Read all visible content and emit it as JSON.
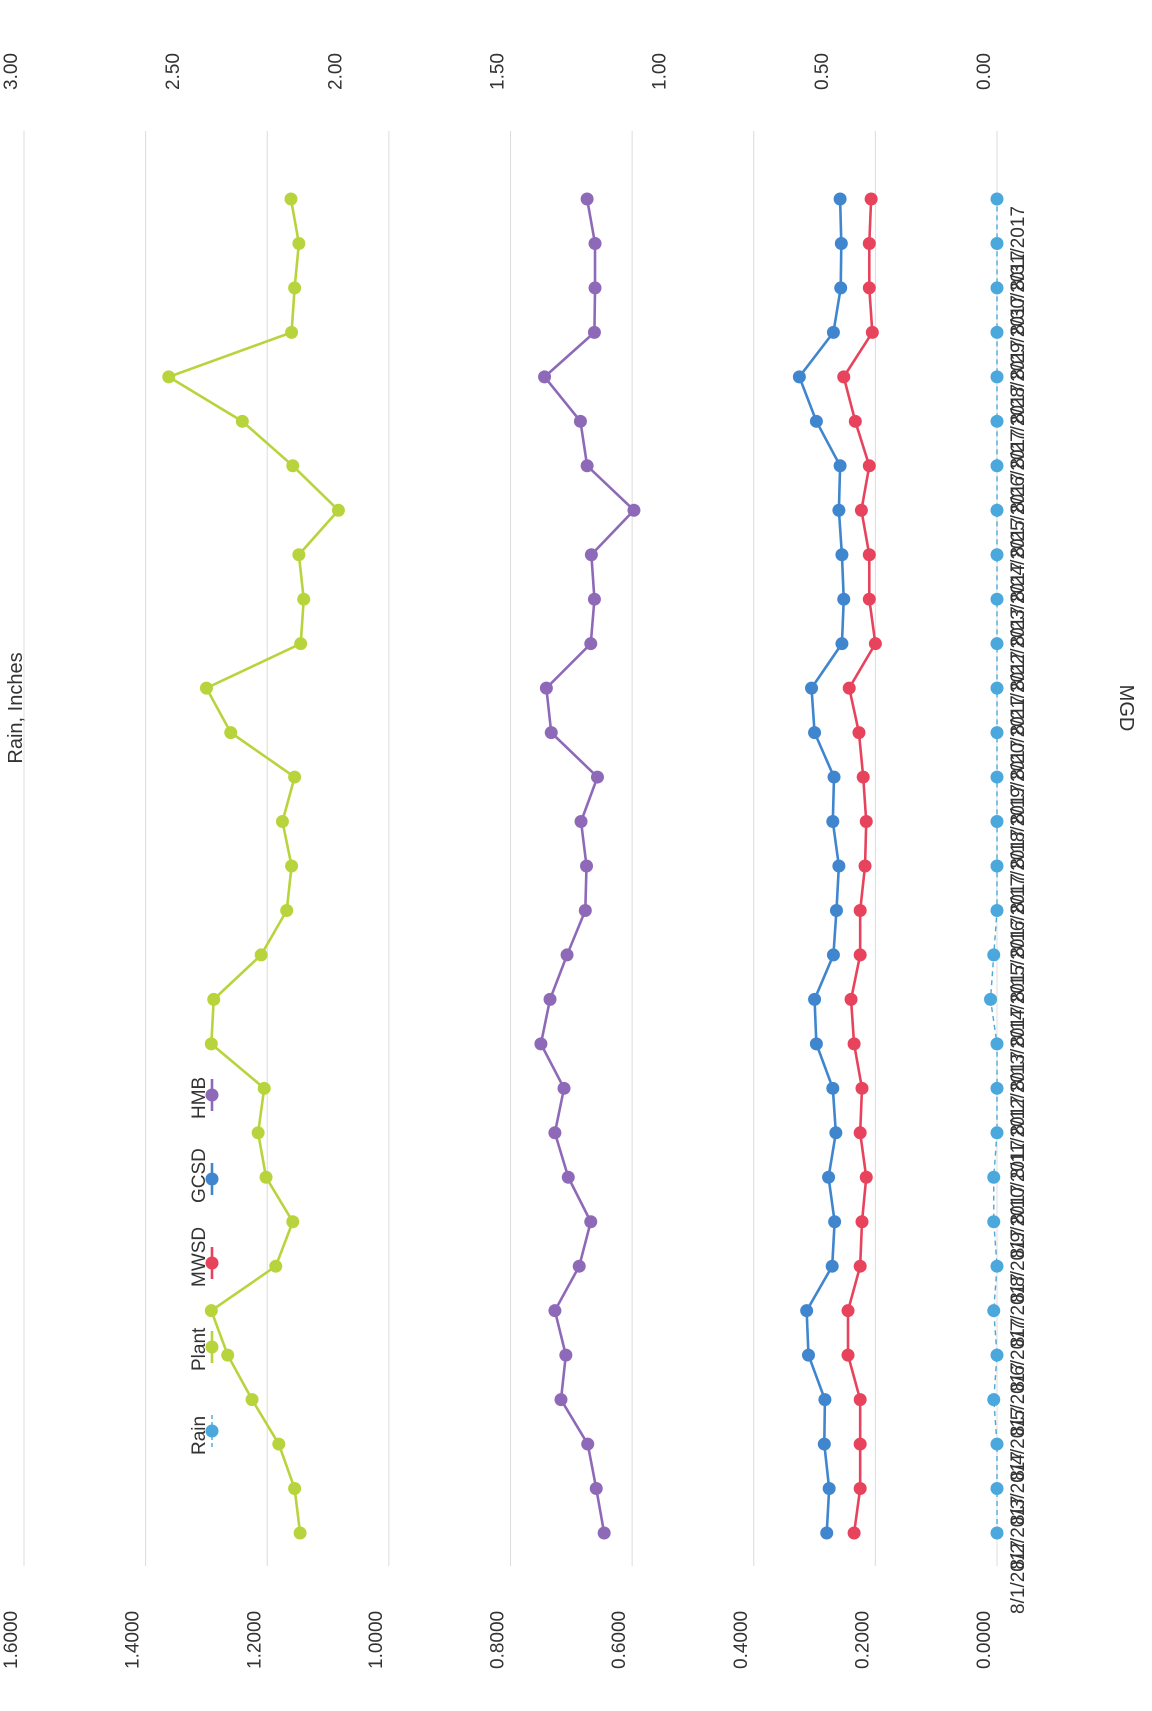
{
  "chart_data": {
    "type": "line",
    "orientation": "rotated-180",
    "x": [
      "8/1/2017",
      "8/2/2017",
      "8/3/2017",
      "8/4/2017",
      "8/5/2017",
      "8/6/2017",
      "8/7/2017",
      "8/8/2017",
      "8/9/2017",
      "8/10/2017",
      "8/11/2017",
      "8/12/2017",
      "8/13/2017",
      "8/14/2017",
      "8/15/2017",
      "8/16/2017",
      "8/17/2017",
      "8/18/2017",
      "8/19/2017",
      "8/20/2017",
      "8/21/2017",
      "8/22/2017",
      "8/23/2017",
      "8/24/2017",
      "8/25/2017",
      "8/26/2017",
      "8/27/2017",
      "8/28/2017",
      "8/29/2017",
      "8/30/2017",
      "8/31/2017"
    ],
    "y_left": {
      "label": "MGD",
      "ylim": [
        0,
        1.6
      ],
      "ticks": [
        "0.0000",
        "0.2000",
        "0.4000",
        "0.6000",
        "0.8000",
        "1.0000",
        "1.2000",
        "1.4000",
        "1.6000"
      ]
    },
    "y_right": {
      "label": "Rain, Inches",
      "ylim": [
        0,
        3.0
      ],
      "ticks": [
        "0.00",
        "0.50",
        "1.00",
        "1.50",
        "2.00",
        "2.50",
        "3.00"
      ]
    },
    "grid": true,
    "legend_position": "bottom",
    "series": [
      {
        "name": "HMB",
        "color": "#8e69b8",
        "axis": "left",
        "values": [
          0.646,
          0.659,
          0.673,
          0.717,
          0.709,
          0.727,
          0.687,
          0.668,
          0.705,
          0.727,
          0.712,
          0.75,
          0.735,
          0.707,
          0.677,
          0.675,
          0.684,
          0.657,
          0.733,
          0.741,
          0.668,
          0.662,
          0.667,
          0.597,
          0.674,
          0.685,
          0.744,
          0.662,
          0.661,
          0.661,
          0.674
        ]
      },
      {
        "name": "GCSD",
        "color": "#3f86cf",
        "axis": "left",
        "values": [
          0.28,
          0.276,
          0.284,
          0.283,
          0.31,
          0.313,
          0.271,
          0.267,
          0.277,
          0.265,
          0.27,
          0.297,
          0.3,
          0.269,
          0.264,
          0.26,
          0.27,
          0.268,
          0.3,
          0.305,
          0.255,
          0.252,
          0.255,
          0.26,
          0.258,
          0.297,
          0.325,
          0.269,
          0.257,
          0.256,
          0.258
        ]
      },
      {
        "name": "MWSD",
        "color": "#e8435c",
        "axis": "left",
        "values": [
          0.235,
          0.225,
          0.225,
          0.225,
          0.245,
          0.245,
          0.225,
          0.222,
          0.215,
          0.225,
          0.222,
          0.235,
          0.24,
          0.225,
          0.225,
          0.217,
          0.215,
          0.22,
          0.227,
          0.243,
          0.2,
          0.21,
          0.21,
          0.223,
          0.21,
          0.233,
          0.252,
          0.205,
          0.21,
          0.21,
          0.207
        ]
      },
      {
        "name": "Plant",
        "color": "#b8d43c",
        "axis": "left",
        "values": [
          1.146,
          1.155,
          1.181,
          1.225,
          1.265,
          1.292,
          1.186,
          1.158,
          1.202,
          1.215,
          1.205,
          1.292,
          1.288,
          1.21,
          1.168,
          1.16,
          1.175,
          1.155,
          1.26,
          1.3,
          1.145,
          1.14,
          1.148,
          1.083,
          1.158,
          1.241,
          1.362,
          1.16,
          1.155,
          1.148,
          1.161
        ]
      },
      {
        "name": "Rain",
        "color": "#4aa8dc",
        "axis": "right",
        "values": [
          0.0,
          0.0,
          0.0,
          0.01,
          0.0,
          0.01,
          0.0,
          0.01,
          0.01,
          0.0,
          0.0,
          0.0,
          0.02,
          0.01,
          0.0,
          0.0,
          0.0,
          0.0,
          0.0,
          0.0,
          0.0,
          0.0,
          0.0,
          0.0,
          0.0,
          0.0,
          0.0,
          0.0,
          0.0,
          0.0,
          0.0
        ]
      }
    ]
  }
}
